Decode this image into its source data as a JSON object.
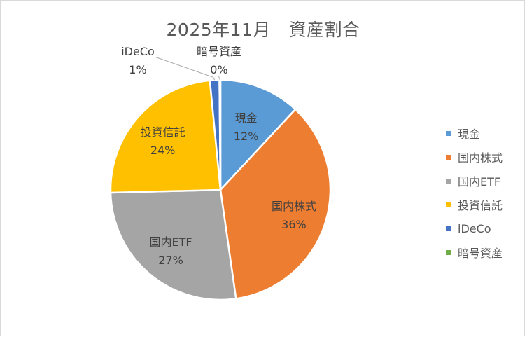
{
  "chart_data": {
    "type": "pie",
    "title": "2025年11月　資産割合",
    "legend_position": "right",
    "slices": [
      {
        "label": "現金",
        "value": 12,
        "value_label": "12%",
        "color": "#5b9bd5"
      },
      {
        "label": "国内株式",
        "value": 36,
        "value_label": "36%",
        "color": "#ed7d31"
      },
      {
        "label": "国内ETF",
        "value": 27,
        "value_label": "27%",
        "color": "#a5a5a5"
      },
      {
        "label": "投資信託",
        "value": 24,
        "value_label": "24%",
        "color": "#ffc000"
      },
      {
        "label": "iDeCo",
        "value": 1,
        "value_label": "1%",
        "color": "#4472c4"
      },
      {
        "label": "暗号資産",
        "value": 0,
        "value_label": "0%",
        "color": "#70ad47"
      }
    ]
  }
}
